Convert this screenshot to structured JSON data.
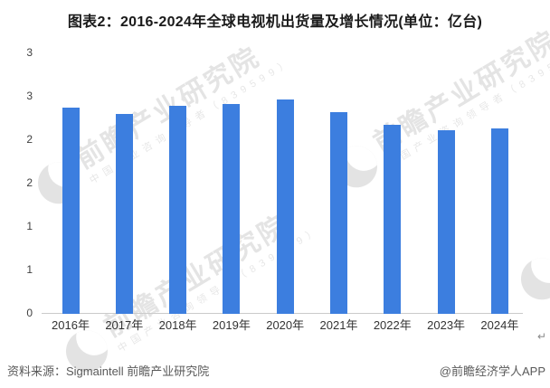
{
  "title": "图表2：2016-2024年全球电视机出货量及增长情况(单位：亿台)",
  "chart_data": {
    "type": "bar",
    "title": "图表2：2016-2024年全球电视机出货量及增长情况(单位：亿台)",
    "unit": "亿台",
    "series_name": "全球电视机出货量",
    "categories": [
      "2016年",
      "2017年",
      "2018年",
      "2019年",
      "2020年",
      "2021年",
      "2022年",
      "2023年",
      "2024年"
    ],
    "values": [
      2.38,
      2.3,
      2.4,
      2.42,
      2.47,
      2.32,
      2.18,
      2.11,
      2.14
    ],
    "ylim": [
      0,
      3
    ],
    "y_ticks_top_to_bottom": [
      {
        "value": 3.0,
        "label": "3"
      },
      {
        "value": 2.5,
        "label": "3"
      },
      {
        "value": 2.0,
        "label": "2"
      },
      {
        "value": 1.5,
        "label": "2"
      },
      {
        "value": 1.0,
        "label": "1"
      },
      {
        "value": 0.5,
        "label": "1"
      },
      {
        "value": 0.0,
        "label": "0"
      }
    ],
    "grid": false,
    "legend": "none",
    "data_labels": false,
    "bar_color": "#3c7edf",
    "axis_line_color": "#cbcbcb"
  },
  "footer": {
    "source": "资料来源：Sigmaintell 前瞻产业研究院",
    "credit": "@前瞻经济学人APP",
    "paragraph_mark": "↵"
  },
  "watermark": {
    "main_text": "前瞻产业研究院",
    "sub_text": "中国产业咨询领导者（839599）",
    "logo": "globe-icon"
  },
  "colors": {
    "title_text": "#1a1a1a",
    "axis_text": "#404040",
    "footer_text": "#595959"
  }
}
